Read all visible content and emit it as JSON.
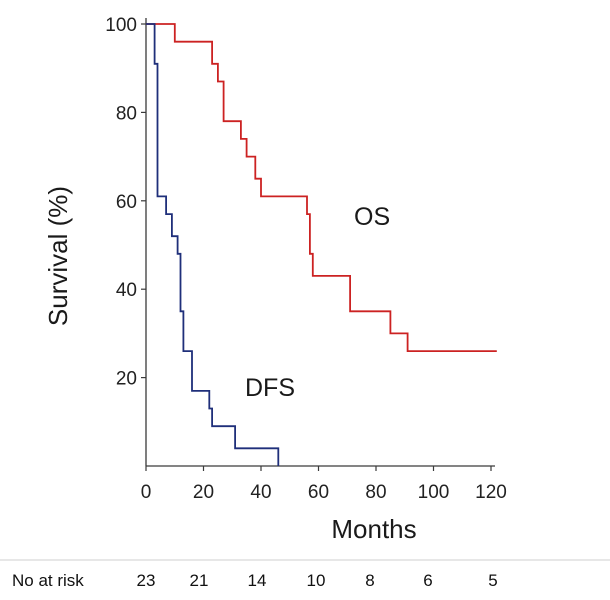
{
  "chart_data": {
    "type": "line",
    "step": true,
    "xlabel": "Months",
    "ylabel": "Survival (%)",
    "xlim": [
      0,
      120
    ],
    "ylim": [
      0,
      100
    ],
    "xticks": [
      0,
      20,
      40,
      60,
      80,
      100,
      120
    ],
    "yticks": [
      20,
      40,
      60,
      80,
      100
    ],
    "grid": false,
    "series": [
      {
        "name": "OS",
        "color": "#cc2222",
        "x": [
          0,
          5,
          10,
          15,
          23,
          25,
          27,
          31,
          33,
          35,
          38,
          40,
          52,
          56,
          57,
          58,
          70,
          71,
          85,
          91,
          122
        ],
        "y": [
          100,
          100,
          96,
          96,
          91,
          87,
          78,
          78,
          74,
          70,
          65,
          61,
          61,
          57,
          48,
          43,
          43,
          35,
          30,
          26,
          26
        ]
      },
      {
        "name": "DFS",
        "color": "#1f2f7a",
        "x": [
          0,
          2,
          3,
          4,
          6,
          7,
          9,
          10,
          11,
          12,
          13,
          15,
          16,
          20,
          22,
          23,
          31,
          46
        ],
        "y": [
          100,
          100,
          91,
          61,
          61,
          57,
          52,
          52,
          48,
          35,
          26,
          26,
          17,
          17,
          13,
          9,
          4,
          0
        ]
      }
    ],
    "risk_table": {
      "label": "No at risk",
      "values": [
        "23",
        "21",
        "14",
        "10",
        "8",
        "6",
        "5"
      ]
    }
  }
}
